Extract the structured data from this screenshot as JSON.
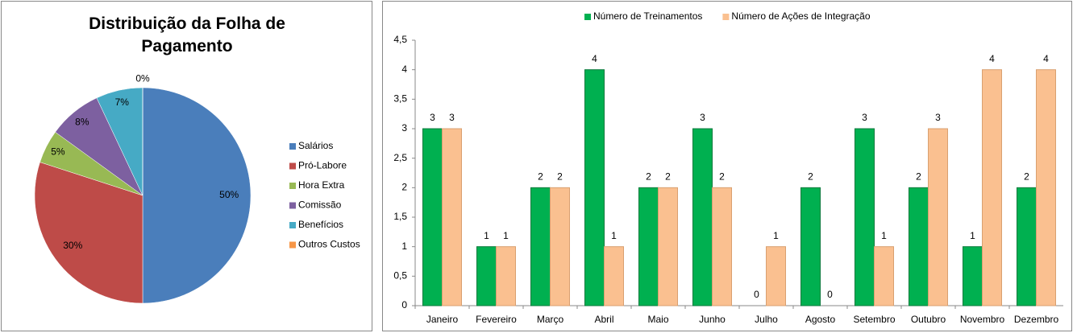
{
  "chart_data": [
    {
      "type": "pie",
      "title": "Distribuição da Folha de Pagamento",
      "categories": [
        "Salários",
        "Pró-Labore",
        "Hora Extra",
        "Comissão",
        "Benefícios",
        "Outros Custos"
      ],
      "values": [
        50,
        30,
        5,
        8,
        7,
        0
      ],
      "value_labels": [
        "50%",
        "30%",
        "5%",
        "8%",
        "7%",
        "0%"
      ],
      "colors": [
        "#4a7ebb",
        "#be4b48",
        "#98b954",
        "#7d60a0",
        "#46aac5",
        "#f79646"
      ],
      "legend": "right"
    },
    {
      "type": "bar",
      "categories": [
        "Janeiro",
        "Fevereiro",
        "Março",
        "Abril",
        "Maio",
        "Junho",
        "Julho",
        "Agosto",
        "Setembro",
        "Outubro",
        "Novembro",
        "Dezembro"
      ],
      "series": [
        {
          "name": "Número de Treinamentos",
          "color": "#00b050",
          "values": [
            3,
            1,
            2,
            4,
            2,
            3,
            0,
            2,
            3,
            2,
            1,
            2
          ]
        },
        {
          "name": "Número de Ações de Integração",
          "color": "#fac090",
          "values": [
            3,
            1,
            2,
            1,
            2,
            2,
            1,
            0,
            1,
            3,
            4,
            4
          ]
        }
      ],
      "ylim": [
        0,
        4.5
      ],
      "yticks": [
        0,
        {
          "value": 0.5,
          "label": "0,5"
        },
        1,
        {
          "value": 1.5,
          "label": "1,5"
        },
        2,
        {
          "value": 2.5,
          "label": "2,5"
        },
        3,
        {
          "value": 3.5,
          "label": "3,5"
        },
        4,
        {
          "value": 4.5,
          "label": "4,5"
        }
      ],
      "legend": "top",
      "grid": false
    }
  ]
}
